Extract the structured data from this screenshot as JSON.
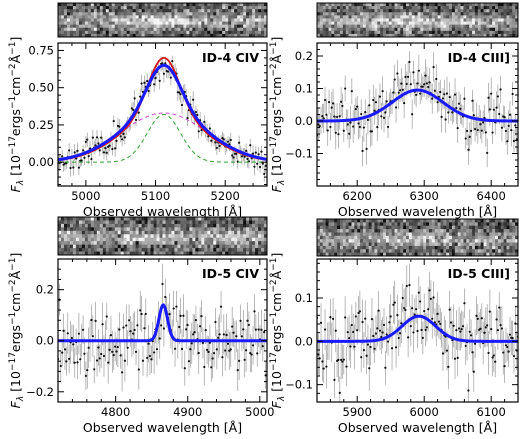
{
  "chart_data": [
    {
      "type": "line",
      "title": "ID-4 CIV",
      "xlabel": "Observed wavelength [Å]",
      "ylabel": "F_λ [10^-17 ergs^-1 cm^-2 Å^-1]",
      "xlim": [
        4960,
        5260
      ],
      "ylim": [
        -0.16,
        0.8
      ],
      "xticks": [
        5000,
        5100,
        5200
      ],
      "yticks": [
        0.0,
        0.25,
        0.5,
        0.75
      ],
      "ytick_labels": [
        "0.00",
        "0.25",
        "0.50",
        "0.75"
      ],
      "spectrum_image": true,
      "spectrum": {
        "noise": 0.045,
        "seed": 11,
        "gaussians": [
          {
            "center": 5112,
            "sigma": 24,
            "amp": 0.32
          },
          {
            "center": 5112,
            "sigma": 62,
            "amp": 0.33
          }
        ]
      },
      "series": [
        {
          "role": "fit",
          "color": "#1a1aff",
          "width": 3,
          "dash": "",
          "smooth": 0.85,
          "gaussians": [
            {
              "center": 5112,
              "sigma": 24,
              "amp": 0.32
            },
            {
              "center": 5112,
              "sigma": 62,
              "amp": 0.33
            }
          ]
        },
        {
          "role": "fit-alt",
          "color": "#d01818",
          "width": 1.8,
          "dash": "",
          "gaussians": [
            {
              "center": 5112,
              "sigma": 22,
              "amp": 0.38
            },
            {
              "center": 5112,
              "sigma": 60,
              "amp": 0.32
            }
          ]
        },
        {
          "role": "narrow-component",
          "color": "#2ca02c",
          "width": 1,
          "dash": "4,3",
          "gaussians": [
            {
              "center": 5112,
              "sigma": 24,
              "amp": 0.32
            }
          ]
        },
        {
          "role": "broad-component",
          "color": "#cc44cc",
          "width": 1,
          "dash": "4,3",
          "gaussians": [
            {
              "center": 5112,
              "sigma": 62,
              "amp": 0.33
            }
          ]
        }
      ]
    },
    {
      "type": "line",
      "title": "ID-4 CIII]",
      "xlabel": "Observed wavelength [Å]",
      "ylabel": "F_λ [10^-17 ergs^-1 cm^-2 Å^-1]",
      "xlim": [
        6140,
        6440
      ],
      "ylim": [
        -0.2,
        0.24
      ],
      "xticks": [
        6200,
        6300,
        6400
      ],
      "yticks": [
        -0.1,
        0.0,
        0.1,
        0.2
      ],
      "ytick_labels": [
        "−0.1",
        "0.0",
        "0.1",
        "0.2"
      ],
      "spectrum_image": true,
      "spectrum": {
        "noise": 0.04,
        "seed": 23,
        "gaussians": [
          {
            "center": 6290,
            "sigma": 38,
            "amp": 0.1
          }
        ]
      },
      "series": [
        {
          "role": "fit",
          "color": "#1a1aff",
          "width": 3,
          "dash": "",
          "gaussians": [
            {
              "center": 6290,
              "sigma": 38,
              "amp": 0.095
            }
          ]
        }
      ]
    },
    {
      "type": "line",
      "title": "ID-5 CIV",
      "xlabel": "Observed wavelength [Å]",
      "ylabel": "F_λ [10^-17 ergs^-1 cm^-2 Å^-1]",
      "xlim": [
        4720,
        5010
      ],
      "ylim": [
        -0.24,
        0.32
      ],
      "xticks": [
        4800,
        4900,
        5000
      ],
      "yticks": [
        -0.2,
        0.0,
        0.2
      ],
      "ytick_labels": [
        "−0.2",
        "0.0",
        "0.2"
      ],
      "spectrum_image": true,
      "spectrum": {
        "noise": 0.065,
        "seed": 37,
        "gaussians": [
          {
            "center": 4866,
            "sigma": 6,
            "amp": 0.15
          }
        ]
      },
      "series": [
        {
          "role": "fit",
          "color": "#1a1aff",
          "width": 3,
          "dash": "",
          "gaussians": [
            {
              "center": 4866,
              "sigma": 6,
              "amp": 0.14
            }
          ]
        }
      ]
    },
    {
      "type": "line",
      "title": "ID-5 CIII]",
      "xlabel": "Observed wavelength [Å]",
      "ylabel": "F_λ [10^-17 ergs^-1 cm^-2 Å^-1]",
      "xlim": [
        5840,
        6140
      ],
      "ylim": [
        -0.14,
        0.19
      ],
      "xticks": [
        5900,
        6000,
        6100
      ],
      "yticks": [
        -0.1,
        0.0,
        0.1
      ],
      "ytick_labels": [
        "−0.1",
        "0.0",
        "0.1"
      ],
      "spectrum_image": true,
      "spectrum": {
        "noise": 0.04,
        "seed": 51,
        "gaussians": [
          {
            "center": 5992,
            "sigma": 25,
            "amp": 0.06
          }
        ]
      },
      "series": [
        {
          "role": "fit",
          "color": "#1a1aff",
          "width": 3,
          "dash": "",
          "gaussians": [
            {
              "center": 5992,
              "sigma": 25,
              "amp": 0.058
            }
          ]
        }
      ]
    }
  ]
}
